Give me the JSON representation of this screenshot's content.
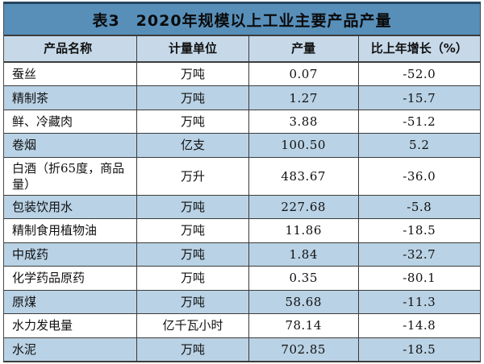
{
  "table": {
    "title": "表3　2020年规模以上工业主要产品产量",
    "columns": {
      "product": "产品名称",
      "unit": "计量单位",
      "output": "产量",
      "growth": "比上年增长（%）"
    },
    "rows": [
      {
        "name": "蚕丝",
        "unit": "万吨",
        "output": "0.07",
        "growth": "-52.0"
      },
      {
        "name": "精制茶",
        "unit": "万吨",
        "output": "1.27",
        "growth": "-15.7"
      },
      {
        "name": "鲜、冷藏肉",
        "unit": "万吨",
        "output": "3.88",
        "growth": "-51.2"
      },
      {
        "name": "卷烟",
        "unit": "亿支",
        "output": "100.50",
        "growth": "5.2"
      },
      {
        "name": "白酒（折65度，商品量）",
        "unit": "万升",
        "output": "483.67",
        "growth": "-36.0"
      },
      {
        "name": "包装饮用水",
        "unit": "万吨",
        "output": "227.68",
        "growth": "-5.8"
      },
      {
        "name": "精制食用植物油",
        "unit": "万吨",
        "output": "11.86",
        "growth": "-18.5"
      },
      {
        "name": "中成药",
        "unit": "万吨",
        "output": "1.84",
        "growth": "-32.7"
      },
      {
        "name": "化学药品原药",
        "unit": "万吨",
        "output": "0.35",
        "growth": "-80.1"
      },
      {
        "name": "原煤",
        "unit": "万吨",
        "output": "58.68",
        "growth": "-11.3"
      },
      {
        "name": "水力发电量",
        "unit": "亿千瓦小时",
        "output": "78.14",
        "growth": "-14.8"
      },
      {
        "name": "水泥",
        "unit": "万吨",
        "output": "702.85",
        "growth": "-18.5"
      }
    ]
  },
  "colors": {
    "title_bar": "#578fb9",
    "title_top_rule": "#24445f",
    "header_row": "#c7d9e9",
    "alt_row": "#b9d2e5",
    "grid_line": "#3c3c3c",
    "text": "#111111"
  },
  "chart_data": {
    "type": "table",
    "title": "表3　2020年规模以上工业主要产品产量",
    "columns": [
      "产品名称",
      "计量单位",
      "产量",
      "比上年增长（%）"
    ],
    "rows": [
      [
        "蚕丝",
        "万吨",
        0.07,
        -52.0
      ],
      [
        "精制茶",
        "万吨",
        1.27,
        -15.7
      ],
      [
        "鲜、冷藏肉",
        "万吨",
        3.88,
        -51.2
      ],
      [
        "卷烟",
        "亿支",
        100.5,
        5.2
      ],
      [
        "白酒（折65度，商品量）",
        "万升",
        483.67,
        -36.0
      ],
      [
        "包装饮用水",
        "万吨",
        227.68,
        -5.8
      ],
      [
        "精制食用植物油",
        "万吨",
        11.86,
        -18.5
      ],
      [
        "中成药",
        "万吨",
        1.84,
        -32.7
      ],
      [
        "化学药品原药",
        "万吨",
        0.35,
        -80.1
      ],
      [
        "原煤",
        "万吨",
        58.68,
        -11.3
      ],
      [
        "水力发电量",
        "亿千瓦小时",
        78.14,
        -14.8
      ],
      [
        "水泥",
        "万吨",
        702.85,
        -18.5
      ]
    ]
  }
}
